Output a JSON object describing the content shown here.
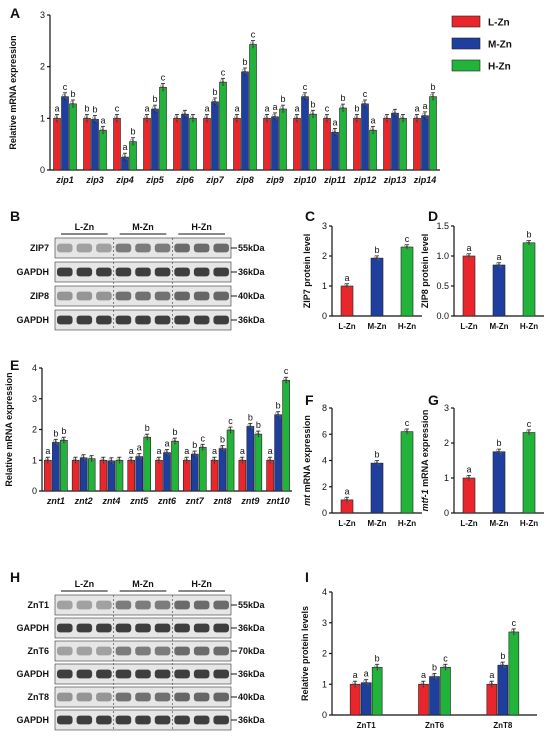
{
  "colors": {
    "L-Zn": "#e8262b",
    "M-Zn": "#1f3f9e",
    "H-Zn": "#22b43a"
  },
  "legend": [
    "L-Zn",
    "M-Zn",
    "H-Zn"
  ],
  "panel_letters": [
    "A",
    "B",
    "C",
    "D",
    "E",
    "F",
    "G",
    "H",
    "I"
  ],
  "blot_B": {
    "groups": [
      "L-Zn",
      "M-Zn",
      "H-Zn"
    ],
    "rows": [
      "ZIP7",
      "GAPDH",
      "ZIP8",
      "GAPDH"
    ],
    "sizes": [
      "55kDa",
      "36kDa",
      "40kDa",
      "36kDa"
    ]
  },
  "blot_H": {
    "groups": [
      "L-Zn",
      "M-Zn",
      "H-Zn"
    ],
    "rows": [
      "ZnT1",
      "GAPDH",
      "ZnT6",
      "GAPDH",
      "ZnT8",
      "GAPDH"
    ],
    "sizes": [
      "55kDa",
      "36kDa",
      "70kDa",
      "36kDa",
      "40kDa",
      "36kDa"
    ]
  },
  "chart_data": [
    {
      "panel": "A",
      "type": "bar",
      "ylabel": "Relative mRNA expression",
      "ylim": [
        0,
        3
      ],
      "yticks": [
        0,
        1,
        2,
        3
      ],
      "categories": [
        "zip1",
        "zip3",
        "zip4",
        "zip5",
        "zip6",
        "zip7",
        "zip8",
        "zip9",
        "zip10",
        "zip11",
        "zip12",
        "zip13",
        "zip14"
      ],
      "series": [
        {
          "name": "L-Zn",
          "values": [
            1.0,
            1.0,
            1.0,
            1.0,
            1.0,
            1.0,
            1.0,
            1.0,
            1.0,
            1.0,
            1.0,
            1.0,
            1.0
          ]
        },
        {
          "name": "M-Zn",
          "values": [
            1.42,
            0.98,
            0.25,
            1.18,
            1.08,
            1.32,
            1.9,
            1.03,
            1.42,
            0.73,
            1.28,
            1.1,
            1.05
          ]
        },
        {
          "name": "H-Zn",
          "values": [
            1.28,
            0.77,
            0.55,
            1.6,
            1.0,
            1.7,
            2.43,
            1.18,
            1.08,
            1.2,
            0.77,
            1.0,
            1.42
          ]
        }
      ],
      "labels": [
        [
          "a",
          "c",
          "b"
        ],
        [
          "b",
          "b",
          "a"
        ],
        [
          "c",
          "a",
          "b"
        ],
        [
          "a",
          "b",
          "c"
        ],
        [
          "",
          "",
          ""
        ],
        [
          "a",
          "b",
          "c"
        ],
        [
          "a",
          "b",
          "c"
        ],
        [
          "a",
          "a",
          "b"
        ],
        [
          "a",
          "c",
          "b"
        ],
        [
          "c",
          "a",
          "b"
        ],
        [
          "b",
          "c",
          "a"
        ],
        [
          "",
          "",
          ""
        ],
        [
          "a",
          "a",
          "b"
        ]
      ]
    },
    {
      "panel": "C",
      "type": "bar",
      "ylabel": "ZIP7 protein level",
      "ylim": [
        0,
        3
      ],
      "yticks": [
        0,
        1,
        2,
        3
      ],
      "categories": [
        "L-Zn",
        "M-Zn",
        "H-Zn"
      ],
      "values": [
        1.0,
        1.93,
        2.3
      ],
      "labels": [
        "a",
        "b",
        "c"
      ]
    },
    {
      "panel": "D",
      "type": "bar",
      "ylabel": "ZIP8 protein level",
      "ylim": [
        0,
        1.5
      ],
      "yticks": [
        0.0,
        0.5,
        1.0,
        1.5
      ],
      "categories": [
        "L-Zn",
        "M-Zn",
        "H-Zn"
      ],
      "values": [
        1.0,
        0.85,
        1.22
      ],
      "labels": [
        "a",
        "a",
        "b"
      ]
    },
    {
      "panel": "E",
      "type": "bar",
      "ylabel": "Relative mRNA expression",
      "ylim": [
        0,
        4
      ],
      "yticks": [
        0,
        1,
        2,
        3,
        4
      ],
      "categories": [
        "znt1",
        "znt2",
        "znt4",
        "znt5",
        "znt6",
        "znt7",
        "znt8",
        "znt9",
        "znt10"
      ],
      "series": [
        {
          "name": "L-Zn",
          "values": [
            1.0,
            1.0,
            1.0,
            1.0,
            1.0,
            1.0,
            1.0,
            1.0,
            1.0
          ]
        },
        {
          "name": "M-Zn",
          "values": [
            1.58,
            1.08,
            0.98,
            1.12,
            1.25,
            1.2,
            1.38,
            2.1,
            2.48
          ]
        },
        {
          "name": "H-Zn",
          "values": [
            1.65,
            1.05,
            1.0,
            1.75,
            1.62,
            1.42,
            1.98,
            1.85,
            3.6
          ]
        }
      ],
      "labels": [
        [
          "a",
          "b",
          "b"
        ],
        [
          "",
          "",
          ""
        ],
        [
          "",
          "",
          ""
        ],
        [
          "a",
          "a",
          "b"
        ],
        [
          "a",
          "a",
          "b"
        ],
        [
          "a",
          "b",
          "c"
        ],
        [
          "a",
          "b",
          "c"
        ],
        [
          "a",
          "b",
          "b"
        ],
        [
          "a",
          "b",
          "c"
        ]
      ]
    },
    {
      "panel": "F",
      "type": "bar",
      "ylabel": "mt mRNA expression",
      "ylim": [
        0,
        8
      ],
      "yticks": [
        0,
        2,
        4,
        6,
        8
      ],
      "categories": [
        "L-Zn",
        "M-Zn",
        "H-Zn"
      ],
      "values": [
        1.0,
        3.8,
        6.2
      ],
      "labels": [
        "a",
        "b",
        "c"
      ]
    },
    {
      "panel": "G",
      "type": "bar",
      "ylabel": "mtf-1 mRNA expression",
      "ylim": [
        0,
        3
      ],
      "yticks": [
        0,
        1,
        2,
        3
      ],
      "categories": [
        "L-Zn",
        "M-Zn",
        "H-Zn"
      ],
      "values": [
        1.0,
        1.75,
        2.3
      ],
      "labels": [
        "a",
        "b",
        "c"
      ]
    },
    {
      "panel": "I",
      "type": "bar",
      "ylabel": "Relative protein levels",
      "ylim": [
        0,
        4
      ],
      "yticks": [
        0,
        1,
        2,
        3,
        4
      ],
      "categories": [
        "ZnT1",
        "ZnT6",
        "ZnT8"
      ],
      "series": [
        {
          "name": "L-Zn",
          "values": [
            1.0,
            1.0,
            1.0
          ]
        },
        {
          "name": "M-Zn",
          "values": [
            1.05,
            1.25,
            1.62
          ]
        },
        {
          "name": "H-Zn",
          "values": [
            1.55,
            1.55,
            2.7
          ]
        }
      ],
      "labels": [
        [
          "a",
          "a",
          "b"
        ],
        [
          "a",
          "b",
          "c"
        ],
        [
          "a",
          "b",
          "c"
        ]
      ]
    }
  ]
}
